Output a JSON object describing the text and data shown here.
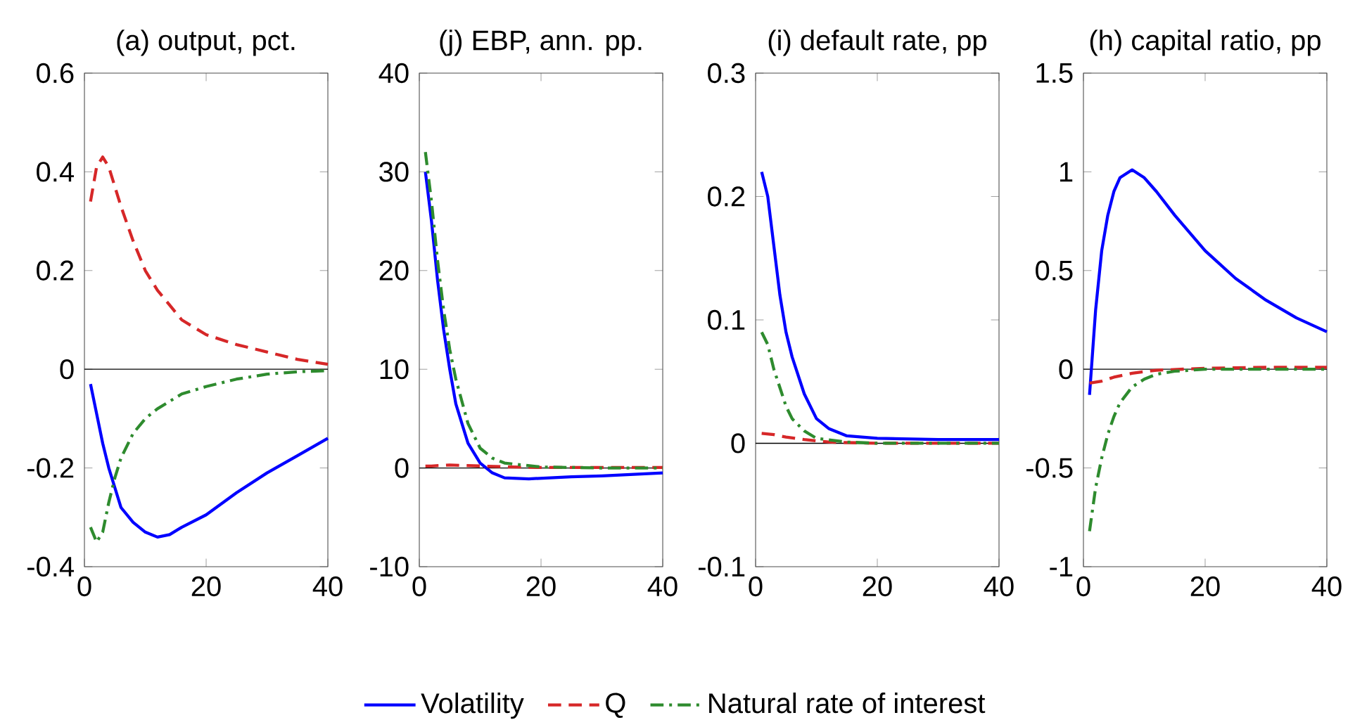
{
  "chart_data": [
    {
      "type": "line",
      "title": "(a) output, pct.",
      "xlim": [
        0,
        40
      ],
      "xticks": [
        0,
        20,
        40
      ],
      "ylim": [
        -0.4,
        0.6
      ],
      "yticks": [
        -0.4,
        -0.2,
        0,
        0.2,
        0.4,
        0.6
      ],
      "legend": "bottom",
      "marker": "none",
      "ref_lines": [
        {
          "axis": "y",
          "value": 0,
          "color": "#000000"
        }
      ],
      "series": [
        {
          "name": "Volatility",
          "color": "#0000ff",
          "line_style": "solid",
          "x": [
            1,
            2,
            3,
            4,
            5,
            6,
            8,
            10,
            12,
            14,
            16,
            20,
            25,
            30,
            35,
            40
          ],
          "values": [
            -0.03,
            -0.09,
            -0.15,
            -0.2,
            -0.24,
            -0.28,
            -0.31,
            -0.33,
            -0.34,
            -0.335,
            -0.32,
            -0.295,
            -0.25,
            -0.21,
            -0.175,
            -0.14
          ]
        },
        {
          "name": "Q",
          "color": "#d62728",
          "line_style": "dashed",
          "x": [
            1,
            2,
            3,
            4,
            5,
            6,
            8,
            10,
            12,
            14,
            16,
            20,
            25,
            30,
            35,
            40
          ],
          "values": [
            0.34,
            0.41,
            0.43,
            0.41,
            0.37,
            0.33,
            0.26,
            0.2,
            0.16,
            0.13,
            0.1,
            0.07,
            0.05,
            0.035,
            0.02,
            0.01
          ]
        },
        {
          "name": "Natural rate of interest",
          "color": "#2e8b2e",
          "line_style": "dashdot",
          "x": [
            1,
            2,
            3,
            4,
            5,
            6,
            8,
            10,
            12,
            14,
            16,
            20,
            25,
            30,
            35,
            40
          ],
          "values": [
            -0.32,
            -0.35,
            -0.33,
            -0.27,
            -0.22,
            -0.18,
            -0.13,
            -0.1,
            -0.08,
            -0.065,
            -0.05,
            -0.035,
            -0.02,
            -0.01,
            -0.005,
            -0.003
          ]
        }
      ]
    },
    {
      "type": "line",
      "title": "(j) EBP, ann. pp.",
      "xlim": [
        0,
        40
      ],
      "xticks": [
        0,
        20,
        40
      ],
      "ylim": [
        -10,
        40
      ],
      "yticks": [
        -10,
        0,
        10,
        20,
        30,
        40
      ],
      "marker": "none",
      "ref_lines": [
        {
          "axis": "y",
          "value": 0,
          "color": "#000000"
        }
      ],
      "series": [
        {
          "color": "#0000ff",
          "line_style": "solid",
          "x": [
            1,
            2,
            3,
            4,
            5,
            6,
            8,
            10,
            12,
            14,
            18,
            25,
            30,
            40
          ],
          "values": [
            30,
            25,
            19,
            14,
            10,
            6.5,
            2.5,
            0.5,
            -0.5,
            -1,
            -1.1,
            -0.9,
            -0.8,
            -0.5
          ]
        },
        {
          "color": "#d62728",
          "line_style": "dashed",
          "x": [
            1,
            2,
            5,
            10,
            15,
            20,
            30,
            40
          ],
          "values": [
            0.2,
            0.2,
            0.3,
            0.2,
            0.1,
            0.05,
            0.05,
            0.05
          ]
        },
        {
          "color": "#2e8b2e",
          "line_style": "dashdot",
          "x": [
            1,
            2,
            3,
            4,
            5,
            6,
            8,
            10,
            12,
            14,
            20,
            30,
            40
          ],
          "values": [
            32,
            27,
            21,
            16,
            12,
            9,
            4.5,
            2,
            1,
            0.5,
            0.1,
            0,
            0
          ]
        }
      ]
    },
    {
      "type": "line",
      "title": "(i) default rate, pp",
      "xlim": [
        0,
        40
      ],
      "xticks": [
        0,
        20,
        40
      ],
      "ylim": [
        -0.1,
        0.3
      ],
      "yticks": [
        -0.1,
        0,
        0.1,
        0.2,
        0.3
      ],
      "marker": "none",
      "ref_lines": [
        {
          "axis": "y",
          "value": 0,
          "color": "#000000"
        }
      ],
      "series": [
        {
          "color": "#0000ff",
          "line_style": "solid",
          "x": [
            1,
            2,
            3,
            4,
            5,
            6,
            8,
            10,
            12,
            15,
            20,
            30,
            40
          ],
          "values": [
            0.22,
            0.2,
            0.16,
            0.12,
            0.09,
            0.07,
            0.04,
            0.02,
            0.012,
            0.006,
            0.004,
            0.003,
            0.003
          ]
        },
        {
          "color": "#d62728",
          "line_style": "dashed",
          "x": [
            1,
            3,
            5,
            8,
            12,
            20,
            40
          ],
          "values": [
            0.008,
            0.007,
            0.005,
            0.003,
            0.001,
            0,
            0
          ]
        },
        {
          "color": "#2e8b2e",
          "line_style": "dashdot",
          "x": [
            1,
            2,
            3,
            4,
            5,
            6,
            8,
            10,
            15,
            20,
            40
          ],
          "values": [
            0.09,
            0.08,
            0.06,
            0.045,
            0.03,
            0.02,
            0.01,
            0.004,
            0.001,
            0,
            0
          ]
        }
      ]
    },
    {
      "type": "line",
      "title": "(h) capital ratio, pp",
      "xlim": [
        0,
        40
      ],
      "xticks": [
        0,
        20,
        40
      ],
      "ylim": [
        -1,
        1.5
      ],
      "yticks": [
        -1,
        -0.5,
        0,
        0.5,
        1,
        1.5
      ],
      "marker": "none",
      "ref_lines": [
        {
          "axis": "y",
          "value": 0,
          "color": "#000000"
        }
      ],
      "series": [
        {
          "color": "#0000ff",
          "line_style": "solid",
          "x": [
            1,
            2,
            3,
            4,
            5,
            6,
            8,
            10,
            12,
            15,
            20,
            25,
            30,
            35,
            40
          ],
          "values": [
            -0.13,
            0.3,
            0.6,
            0.78,
            0.9,
            0.97,
            1.01,
            0.97,
            0.9,
            0.78,
            0.6,
            0.46,
            0.35,
            0.26,
            0.19
          ]
        },
        {
          "color": "#d62728",
          "line_style": "dashed",
          "x": [
            1,
            3,
            5,
            8,
            12,
            20,
            30,
            40
          ],
          "values": [
            -0.07,
            -0.06,
            -0.04,
            -0.02,
            -0.005,
            0.005,
            0.01,
            0.01
          ]
        },
        {
          "color": "#2e8b2e",
          "line_style": "dashdot",
          "x": [
            1,
            2,
            3,
            4,
            5,
            6,
            8,
            10,
            12,
            15,
            20,
            40
          ],
          "values": [
            -0.82,
            -0.6,
            -0.45,
            -0.33,
            -0.24,
            -0.17,
            -0.09,
            -0.05,
            -0.025,
            -0.01,
            0,
            0
          ]
        }
      ]
    }
  ]
}
